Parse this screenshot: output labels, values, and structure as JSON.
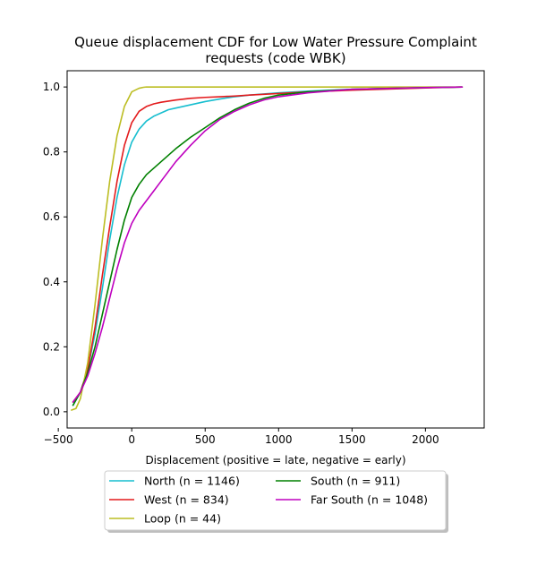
{
  "chart_data": {
    "type": "line",
    "title_lines": [
      "Queue displacement CDF for Low Water Pressure Complaint",
      "requests (code WBK)"
    ],
    "xlabel": "Displacement (positive = late, negative = early)",
    "ylabel": "",
    "xlim": [
      -440,
      2400
    ],
    "ylim": [
      -0.05,
      1.05
    ],
    "xticks": [
      -500,
      0,
      500,
      1000,
      1500,
      2000
    ],
    "xtick_labels": [
      "−500",
      "0",
      "500",
      "1000",
      "1500",
      "2000"
    ],
    "yticks": [
      0.0,
      0.2,
      0.4,
      0.6,
      0.8,
      1.0
    ],
    "ytick_labels": [
      "0.0",
      "0.2",
      "0.4",
      "0.6",
      "0.8",
      "1.0"
    ],
    "grid": false,
    "legend_position": "below-center",
    "series": [
      {
        "name": "North (n = 1146)",
        "color": "#17becf",
        "x": [
          -400,
          -350,
          -300,
          -250,
          -200,
          -150,
          -100,
          -50,
          0,
          50,
          100,
          150,
          200,
          250,
          300,
          400,
          500,
          600,
          700,
          800,
          1000,
          1200,
          1500,
          2000,
          2250
        ],
        "y": [
          0.02,
          0.06,
          0.13,
          0.24,
          0.38,
          0.53,
          0.66,
          0.76,
          0.83,
          0.87,
          0.895,
          0.91,
          0.92,
          0.93,
          0.935,
          0.945,
          0.955,
          0.963,
          0.97,
          0.975,
          0.982,
          0.987,
          0.993,
          0.998,
          1.0
        ]
      },
      {
        "name": "West (n = 834)",
        "color": "#e31a1c",
        "x": [
          -400,
          -350,
          -300,
          -250,
          -200,
          -150,
          -100,
          -50,
          0,
          50,
          100,
          150,
          200,
          300,
          400,
          500,
          600,
          700,
          800,
          1000,
          1200,
          1500,
          2000,
          2250
        ],
        "y": [
          0.03,
          0.06,
          0.13,
          0.26,
          0.42,
          0.57,
          0.71,
          0.82,
          0.89,
          0.925,
          0.94,
          0.948,
          0.953,
          0.96,
          0.965,
          0.968,
          0.97,
          0.972,
          0.975,
          0.98,
          0.985,
          0.99,
          0.997,
          1.0
        ]
      },
      {
        "name": "Loop (n = 44)",
        "color": "#bcbd22",
        "x": [
          -410,
          -380,
          -350,
          -300,
          -250,
          -200,
          -150,
          -100,
          -50,
          0,
          50,
          80,
          100,
          150,
          200,
          500,
          1000,
          1500,
          2000,
          2250
        ],
        "y": [
          0.005,
          0.01,
          0.04,
          0.15,
          0.33,
          0.53,
          0.71,
          0.85,
          0.94,
          0.985,
          0.996,
          0.999,
          1.0,
          1.0,
          1.0,
          1.0,
          1.0,
          1.0,
          1.0,
          1.0
        ]
      },
      {
        "name": "South (n = 911)",
        "color": "#008000",
        "x": [
          -400,
          -350,
          -300,
          -250,
          -200,
          -150,
          -100,
          -50,
          0,
          50,
          100,
          150,
          200,
          300,
          400,
          500,
          600,
          700,
          800,
          900,
          1000,
          1200,
          1500,
          2000,
          2250
        ],
        "y": [
          0.02,
          0.06,
          0.12,
          0.2,
          0.3,
          0.4,
          0.5,
          0.59,
          0.66,
          0.7,
          0.73,
          0.75,
          0.77,
          0.81,
          0.845,
          0.875,
          0.905,
          0.93,
          0.95,
          0.965,
          0.975,
          0.985,
          0.993,
          0.998,
          1.0
        ]
      },
      {
        "name": "Far South (n = 1048)",
        "color": "#bf00bf",
        "x": [
          -400,
          -350,
          -300,
          -250,
          -200,
          -150,
          -100,
          -50,
          0,
          50,
          100,
          150,
          200,
          300,
          400,
          500,
          600,
          700,
          800,
          900,
          1000,
          1200,
          1500,
          2000,
          2250
        ],
        "y": [
          0.03,
          0.06,
          0.11,
          0.18,
          0.26,
          0.35,
          0.44,
          0.52,
          0.58,
          0.62,
          0.65,
          0.68,
          0.71,
          0.77,
          0.82,
          0.865,
          0.9,
          0.925,
          0.945,
          0.96,
          0.97,
          0.982,
          0.993,
          0.998,
          1.0
        ]
      }
    ]
  }
}
